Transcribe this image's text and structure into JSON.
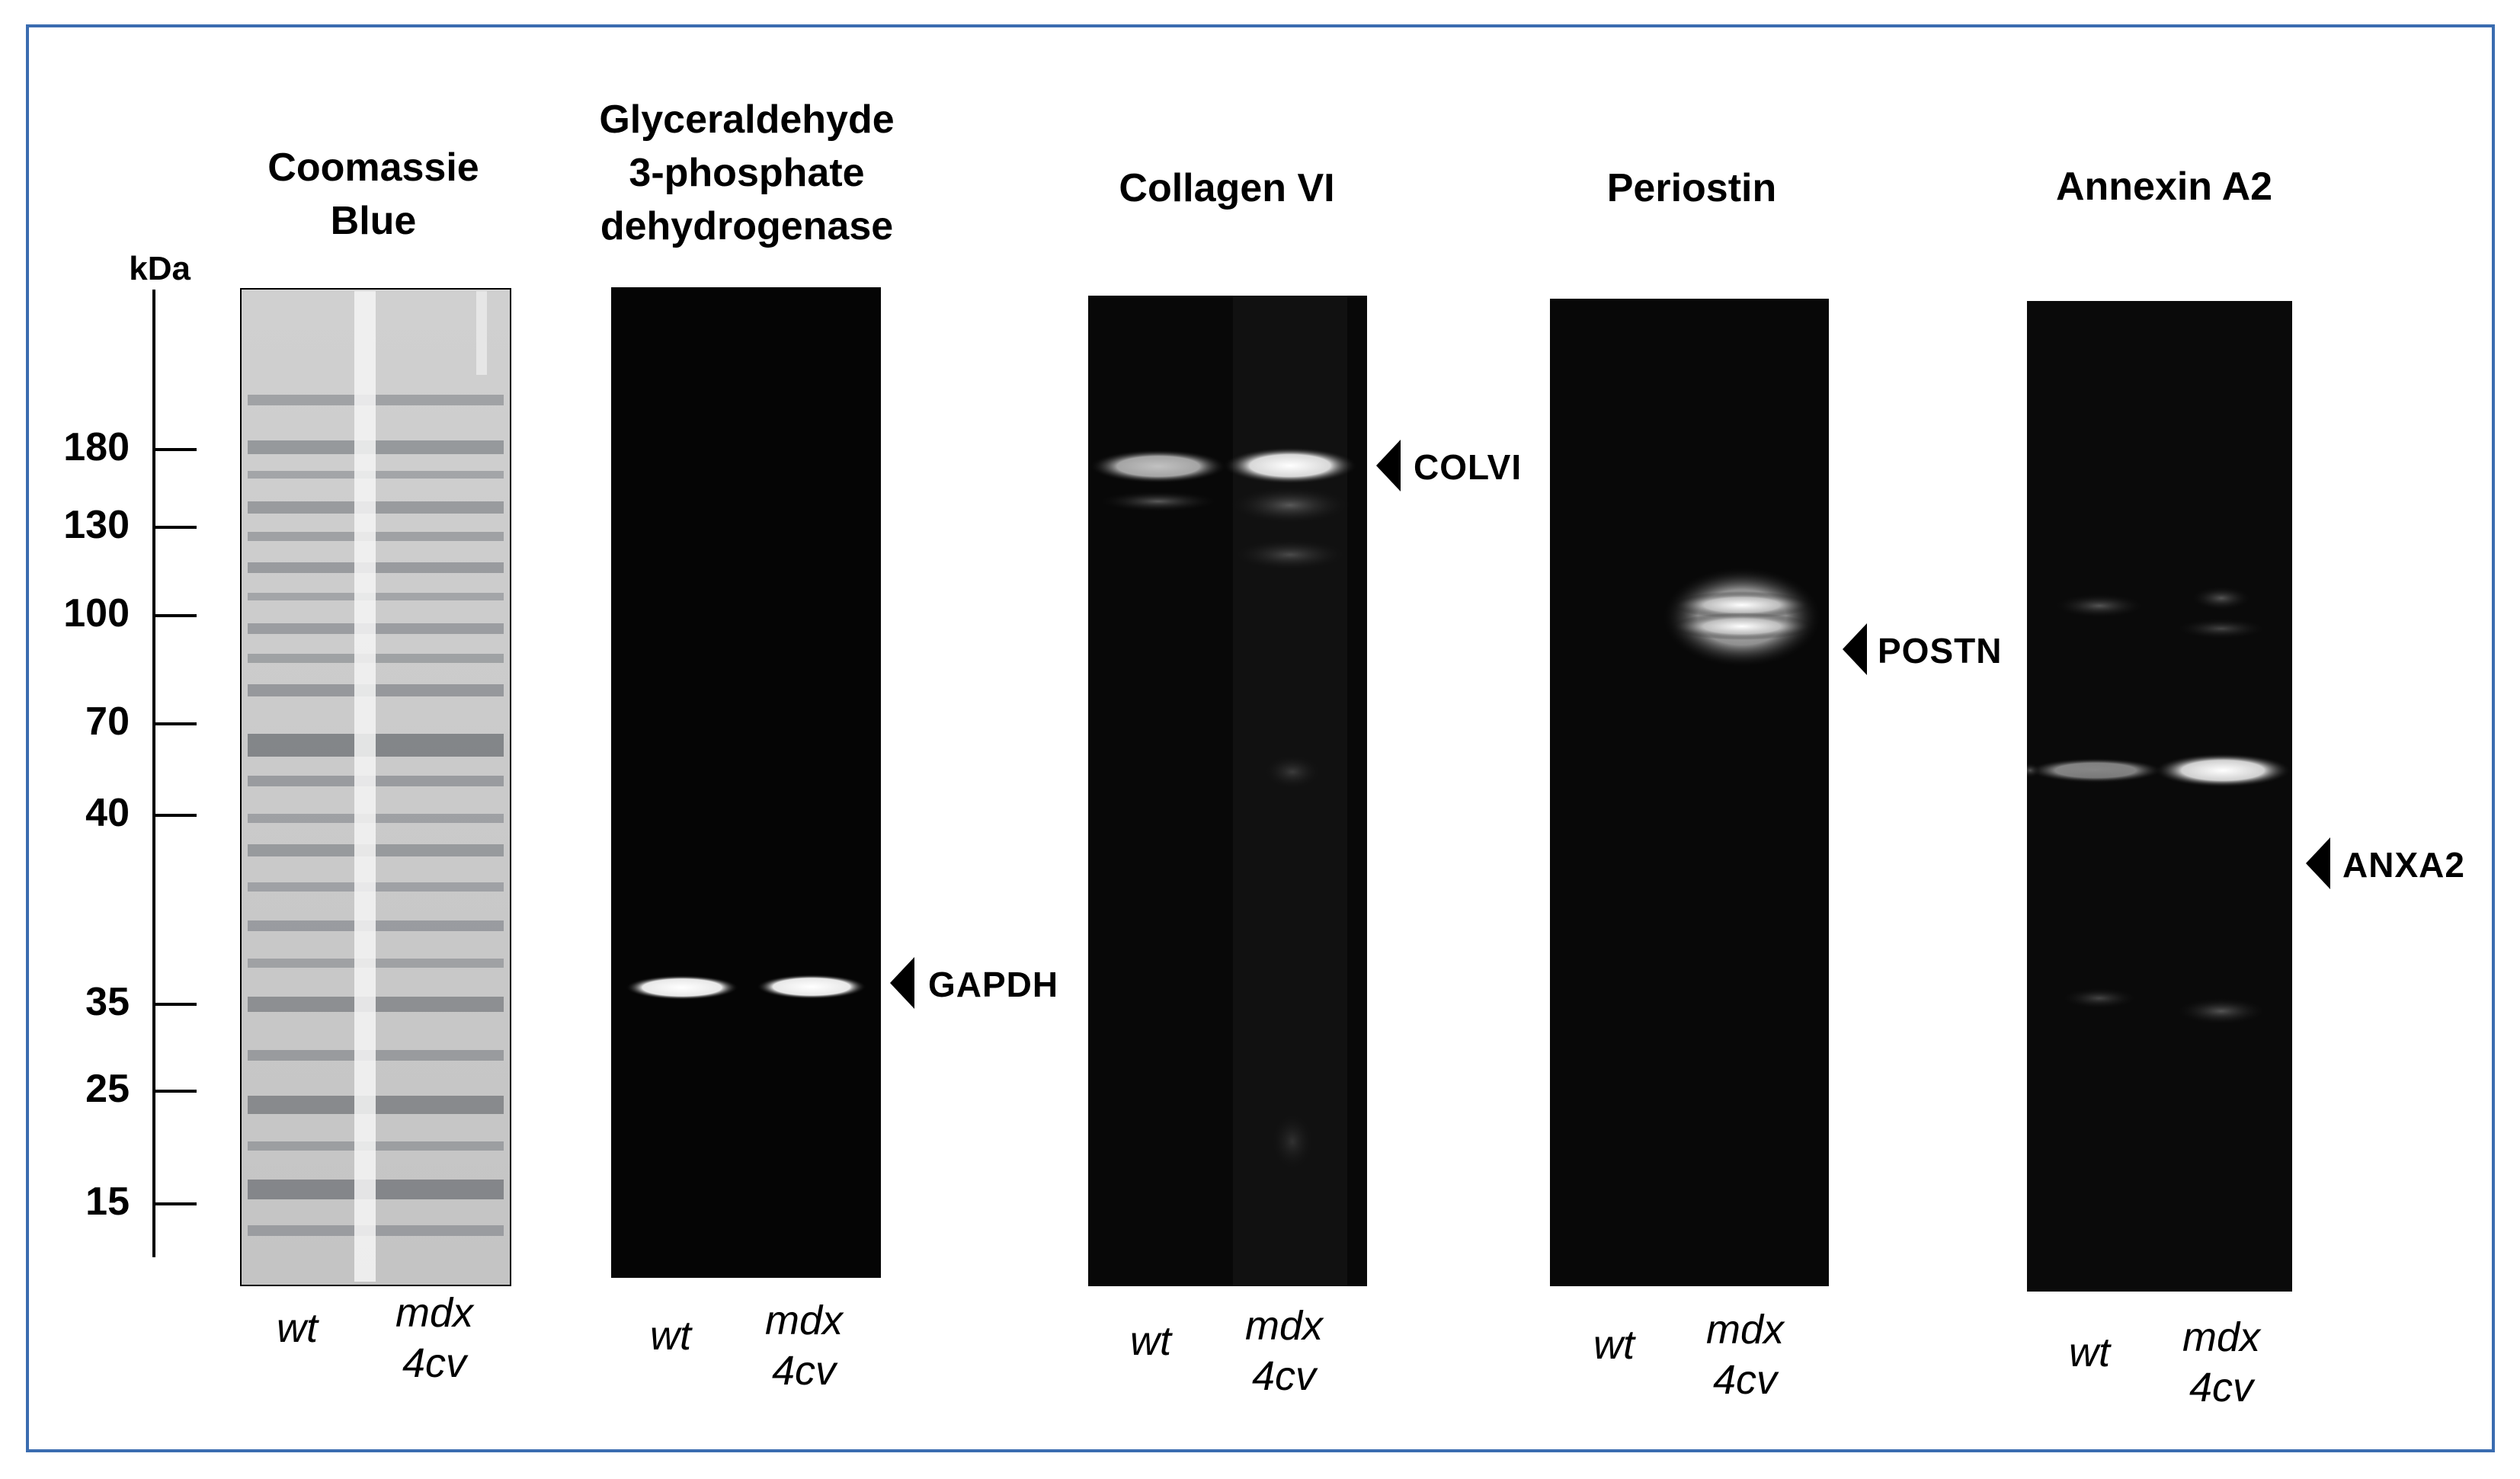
{
  "figure": {
    "axis_unit": "kDa",
    "markers": [
      "180",
      "130",
      "100",
      "70",
      "40",
      "35",
      "25",
      "15"
    ],
    "panels": [
      {
        "title": "Coomassie\nBlue",
        "lanes": [
          "wt",
          "mdx\n4cv"
        ]
      },
      {
        "title": "Glyceraldehyde\n3-phosphate\ndehydrogenase",
        "lanes": [
          "wt",
          "mdx\n4cv"
        ],
        "band_label": "GAPDH"
      },
      {
        "title": "Collagen VI",
        "lanes": [
          "wt",
          "mdx\n4cv"
        ],
        "band_label": "COLVI"
      },
      {
        "title": "Periostin",
        "lanes": [
          "wt",
          "mdx\n4cv"
        ],
        "band_label": "POSTN"
      },
      {
        "title": "Annexin A2",
        "lanes": [
          "wt",
          "mdx\n4cv"
        ],
        "band_label": "ANXA2"
      }
    ]
  },
  "colors": {
    "frame": "#3a6cb0",
    "blot_bg": "#050505",
    "gel_bg": "#c8c8c8"
  }
}
